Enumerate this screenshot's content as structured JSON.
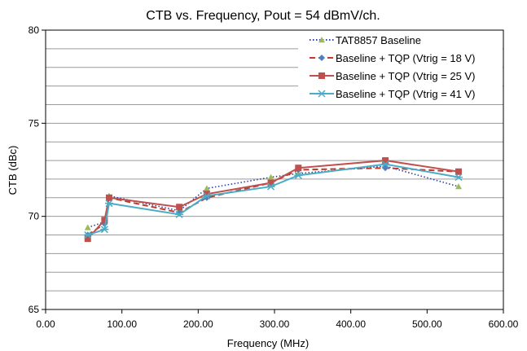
{
  "chart_data": {
    "type": "line",
    "title": "CTB vs. Frequency, Pout = 54 dBmV/ch.",
    "xlabel": "Frequency (MHz)",
    "ylabel": "CTB (dBc)",
    "xlim": [
      0,
      600
    ],
    "ylim": [
      65,
      80
    ],
    "x_ticks": [
      "0.00",
      "100.00",
      "200.00",
      "300.00",
      "400.00",
      "500.00",
      "600.00"
    ],
    "y_ticks": [
      "65",
      "70",
      "75",
      "80"
    ],
    "grid": true,
    "legend_position": "top-right",
    "series": [
      {
        "name": "TAT8857 Baseline",
        "color": "#2E3F9F",
        "line_style": "dotted",
        "marker": "triangle",
        "marker_color": "#9BBB59",
        "x": [
          55.25,
          77.25,
          83.25,
          175.25,
          211.25,
          295.25,
          331.25,
          445.25,
          541.25
        ],
        "y": [
          69.4,
          69.7,
          71.1,
          70.3,
          71.5,
          72.1,
          72.3,
          72.7,
          71.6
        ]
      },
      {
        "name": "Baseline + TQP (Vtrig = 18 V)",
        "color": "#C0392B",
        "line_style": "dashed",
        "marker": "diamond",
        "marker_color": "#4F81BD",
        "x": [
          55.25,
          77.25,
          83.25,
          175.25,
          211.25,
          295.25,
          331.25,
          445.25,
          541.25
        ],
        "y": [
          69.0,
          69.6,
          71.0,
          70.2,
          71.0,
          71.8,
          72.5,
          72.6,
          72.4
        ]
      },
      {
        "name": "Baseline + TQP (Vtrig = 25 V)",
        "color": "#C0504D",
        "line_style": "solid",
        "marker": "square",
        "marker_color": "#C0504D",
        "x": [
          55.25,
          77.25,
          83.25,
          175.25,
          211.25,
          295.25,
          331.25,
          445.25,
          541.25
        ],
        "y": [
          68.8,
          69.8,
          71.0,
          70.5,
          71.2,
          71.8,
          72.6,
          73.0,
          72.4
        ]
      },
      {
        "name": "Baseline + TQP (Vtrig = 41 V)",
        "color": "#4BACC6",
        "line_style": "solid",
        "marker": "star",
        "marker_color": "#4BACC6",
        "x": [
          55.25,
          77.25,
          83.25,
          175.25,
          211.25,
          295.25,
          331.25,
          445.25,
          541.25
        ],
        "y": [
          69.0,
          69.3,
          70.7,
          70.1,
          71.1,
          71.6,
          72.2,
          72.8,
          72.1
        ]
      }
    ]
  }
}
